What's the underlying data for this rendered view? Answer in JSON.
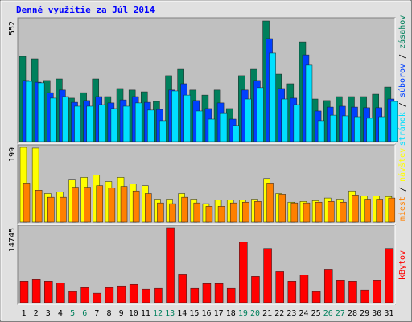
{
  "title": "Denné využitie za Júl 2014",
  "legend_separator": " / ",
  "chart_data": [
    {
      "type": "bar",
      "ylim": [
        0,
        552
      ],
      "yticks": [
        552
      ],
      "series": [
        {
          "name": "zásahov",
          "color": "#00805c",
          "values": [
            390,
            379,
            280,
            287,
            199,
            224,
            287,
            206,
            243,
            236,
            228,
            184,
            302,
            331,
            236,
            213,
            236,
            151,
            302,
            331,
            552,
            309,
            265,
            456,
            195,
            188,
            206,
            206,
            206,
            217,
            250
          ]
        },
        {
          "name": "súborov",
          "color": "#0040ff",
          "values": [
            280,
            272,
            224,
            236,
            180,
            188,
            206,
            177,
            191,
            206,
            180,
            147,
            236,
            265,
            188,
            151,
            177,
            103,
            236,
            280,
            471,
            243,
            199,
            397,
            140,
            158,
            162,
            158,
            155,
            155,
            195
          ]
        },
        {
          "name": "stránok",
          "color": "#00e0ff",
          "values": [
            276,
            269,
            199,
            206,
            162,
            162,
            169,
            151,
            162,
            177,
            144,
            96,
            232,
            213,
            140,
            103,
            132,
            74,
            195,
            247,
            405,
            195,
            169,
            350,
            96,
            121,
            118,
            114,
            107,
            114,
            184
          ]
        }
      ]
    },
    {
      "type": "bar",
      "ylim": [
        0,
        199
      ],
      "yticks": [
        199
      ],
      "series": [
        {
          "name": "návštev",
          "color": "#ffff00",
          "values": [
            199,
            197,
            76,
            80,
            114,
            119,
            125,
            108,
            119,
            102,
            97,
            61,
            61,
            76,
            61,
            49,
            59,
            59,
            59,
            61,
            116,
            76,
            53,
            55,
            57,
            64,
            61,
            83,
            70,
            70,
            68
          ]
        },
        {
          "name": "miest",
          "color": "#ff8000",
          "values": [
            104,
            85,
            66,
            66,
            93,
            93,
            97,
            91,
            95,
            83,
            76,
            51,
            49,
            66,
            51,
            42,
            42,
            51,
            53,
            55,
            104,
            74,
            51,
            51,
            53,
            55,
            53,
            72,
            61,
            61,
            64
          ]
        }
      ]
    },
    {
      "type": "bar",
      "ylim": [
        0,
        14745
      ],
      "yticks": [
        14745
      ],
      "categories": [
        1,
        2,
        3,
        4,
        5,
        6,
        7,
        8,
        9,
        10,
        11,
        12,
        13,
        14,
        15,
        16,
        17,
        18,
        19,
        20,
        21,
        22,
        23,
        24,
        25,
        26,
        27,
        28,
        29,
        30,
        31
      ],
      "label_color": "#000000",
      "highlight_color": "#00805c",
      "highlight_indices": [
        4,
        5,
        11,
        12,
        18,
        19,
        25,
        26
      ],
      "series": [
        {
          "name": "kBytov",
          "color": "#ff0000",
          "values": [
            4236,
            4550,
            4236,
            3922,
            2197,
            2981,
            1883,
            2981,
            3295,
            3609,
            2667,
            2824,
            14745,
            5648,
            2824,
            3766,
            3766,
            2824,
            11924,
            5178,
            10669,
            6119,
            4236,
            5492,
            2197,
            6590,
            4393,
            4236,
            2510,
            4393,
            10669
          ]
        }
      ]
    }
  ]
}
